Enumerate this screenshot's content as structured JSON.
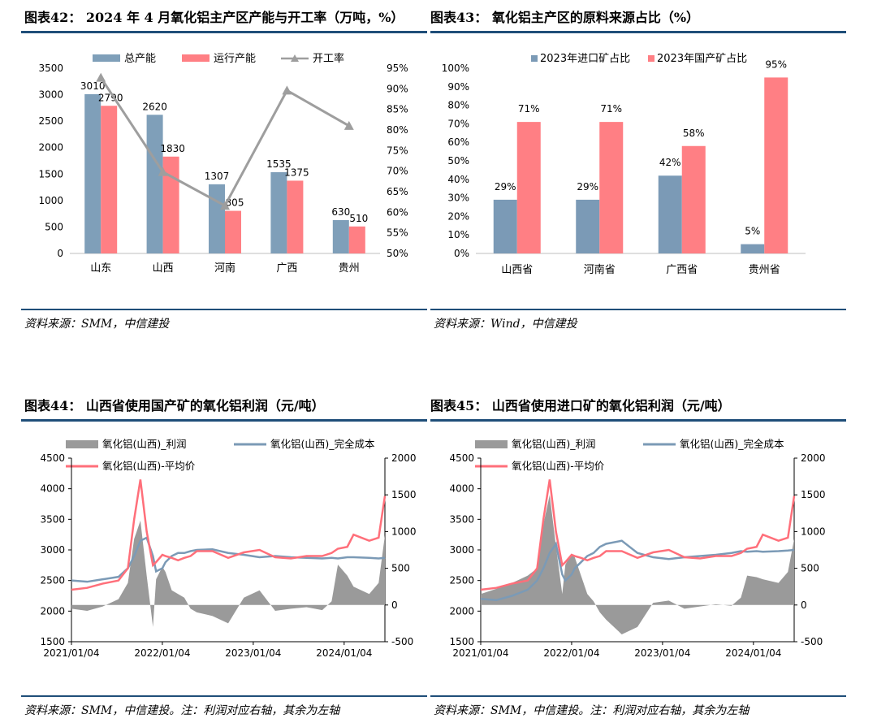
{
  "colors": {
    "blue": "#7f9fb9",
    "red": "#ff7f84",
    "gray": "#9e9e9e",
    "grayFill": "#9a9a9a",
    "steel": "#7b9ab6",
    "pink": "#ff6f7a",
    "rule": "#1f4e79"
  },
  "fig42": {
    "title": "图表42： 2024 年 4 月氧化铝主产区产能与开工率（万吨，%）",
    "source": "资料来源：SMM，中信建投"
  },
  "fig43": {
    "title": "图表43： 氧化铝主产区的原料来源占比（%）",
    "source": "资料来源：Wind，中信建投"
  },
  "fig44": {
    "title": "图表44： 山西省使用国产矿的氧化铝利润（元/吨）",
    "source": "资料来源：SMM，中信建投。注：利润对应右轴，其余为左轴"
  },
  "fig45": {
    "title": "图表45： 山西省使用进口矿的氧化铝利润（元/吨）",
    "source": "资料来源：SMM，中信建投。注：利润对应右轴，其余为左轴"
  },
  "chart_data": [
    {
      "id": "c42",
      "type": "bar",
      "categories": [
        "山东",
        "山西",
        "河南",
        "广西",
        "贵州"
      ],
      "series": [
        {
          "name": "总产能",
          "kind": "bar",
          "values": [
            3010,
            2620,
            1307,
            1535,
            630
          ]
        },
        {
          "name": "运行产能",
          "kind": "bar",
          "values": [
            2790,
            1830,
            805,
            1375,
            510
          ]
        },
        {
          "name": "开工率",
          "kind": "line",
          "axis": "right",
          "values": [
            92.7,
            69.8,
            61.6,
            89.6,
            81.0
          ]
        }
      ],
      "ylim": [
        0,
        3500
      ],
      "yticks": [
        0,
        500,
        1000,
        1500,
        2000,
        2500,
        3000,
        3500
      ],
      "y2lim": [
        50,
        95
      ],
      "y2ticks": [
        "50%",
        "55%",
        "60%",
        "65%",
        "70%",
        "75%",
        "80%",
        "85%",
        "90%",
        "95%"
      ],
      "labels_a": [
        "3010",
        "2620",
        "1307",
        "1535",
        "630"
      ],
      "labels_b": [
        "2790",
        "1830",
        "805",
        "1375",
        "510"
      ]
    },
    {
      "id": "c43",
      "type": "bar",
      "categories": [
        "山西省",
        "河南省",
        "广西省",
        "贵州省"
      ],
      "series": [
        {
          "name": "2023年进口矿占比",
          "values": [
            29,
            29,
            42,
            5
          ]
        },
        {
          "name": "2023年国产矿占比",
          "values": [
            71,
            71,
            58,
            95
          ]
        }
      ],
      "ylim": [
        0,
        100
      ],
      "yticks": [
        "0%",
        "10%",
        "20%",
        "30%",
        "40%",
        "50%",
        "60%",
        "70%",
        "80%",
        "90%",
        "100%"
      ],
      "labels_a": [
        "29%",
        "29%",
        "42%",
        "5%"
      ],
      "labels_b": [
        "71%",
        "71%",
        "58%",
        "95%"
      ]
    },
    {
      "id": "c44",
      "type": "line",
      "series_names": [
        "氧化铝(山西)_利润",
        "氧化铝(山西)_完全成本",
        "氧化铝(山西)-平均价"
      ],
      "xticks": [
        "2021/01/04",
        "2022/01/04",
        "2023/01/04",
        "2024/01/04"
      ],
      "ylim": [
        1500,
        4500
      ],
      "yticks": [
        "1500",
        "2000",
        "2500",
        "3000",
        "3500",
        "4000",
        "4500"
      ],
      "y2lim": [
        -500,
        2000
      ],
      "y2ticks": [
        "-500",
        "0",
        "500",
        "1000",
        "1500",
        "2000"
      ],
      "x": [
        0,
        0.05,
        0.1,
        0.15,
        0.18,
        0.2,
        0.22,
        0.24,
        0.26,
        0.27,
        0.29,
        0.3,
        0.32,
        0.34,
        0.36,
        0.38,
        0.4,
        0.45,
        0.5,
        0.55,
        0.6,
        0.65,
        0.7,
        0.75,
        0.8,
        0.83,
        0.85,
        0.88,
        0.9,
        0.95,
        0.98,
        1.0
      ],
      "profit": [
        -50,
        -80,
        -20,
        80,
        300,
        900,
        1150,
        400,
        -300,
        350,
        520,
        450,
        200,
        150,
        100,
        -50,
        -100,
        -150,
        -250,
        100,
        200,
        -80,
        -50,
        -30,
        -70,
        50,
        550,
        400,
        250,
        150,
        300,
        950
      ],
      "cost": [
        2500,
        2480,
        2520,
        2560,
        2700,
        2900,
        3150,
        3200,
        2900,
        2650,
        2700,
        2800,
        2900,
        2950,
        2950,
        2980,
        3000,
        3010,
        2950,
        2920,
        2880,
        2900,
        2880,
        2870,
        2860,
        2870,
        2860,
        2880,
        2880,
        2870,
        2860,
        2870
      ],
      "price": [
        2350,
        2380,
        2450,
        2500,
        2700,
        3500,
        4150,
        3300,
        2750,
        2800,
        2920,
        2900,
        2870,
        2830,
        2870,
        2900,
        2980,
        2980,
        2870,
        2960,
        3000,
        2880,
        2860,
        2900,
        2900,
        2950,
        3020,
        3050,
        3250,
        3150,
        3200,
        3880
      ]
    },
    {
      "id": "c45",
      "type": "line",
      "series_names": [
        "氧化铝(山西)_利润",
        "氧化铝(山西)_完全成本",
        "氧化铝(山西)-平均价"
      ],
      "xticks": [
        "2021/01/04",
        "2022/01/04",
        "2023/01/04",
        "2024/01/04"
      ],
      "ylim": [
        1500,
        4500
      ],
      "yticks": [
        "1500",
        "2000",
        "2500",
        "3000",
        "3500",
        "4000",
        "4500"
      ],
      "y2lim": [
        -500,
        2000
      ],
      "y2ticks": [
        "-500",
        "0",
        "500",
        "1000",
        "1500",
        "2000"
      ],
      "x": [
        0,
        0.05,
        0.1,
        0.15,
        0.18,
        0.2,
        0.22,
        0.24,
        0.26,
        0.27,
        0.29,
        0.3,
        0.32,
        0.34,
        0.36,
        0.38,
        0.4,
        0.45,
        0.5,
        0.55,
        0.6,
        0.65,
        0.7,
        0.75,
        0.8,
        0.83,
        0.85,
        0.88,
        0.9,
        0.95,
        0.98,
        1.0
      ],
      "profit": [
        150,
        220,
        300,
        400,
        500,
        1100,
        1500,
        800,
        150,
        550,
        700,
        650,
        400,
        150,
        50,
        -100,
        -200,
        -400,
        -300,
        30,
        60,
        -50,
        -20,
        10,
        -10,
        100,
        400,
        380,
        350,
        300,
        450,
        900
      ],
      "cost": [
        2200,
        2180,
        2250,
        2350,
        2500,
        2700,
        2950,
        3100,
        2600,
        2500,
        2600,
        2700,
        2800,
        2900,
        2950,
        3050,
        3100,
        3150,
        2950,
        2880,
        2850,
        2880,
        2900,
        2920,
        2950,
        2980,
        2970,
        2980,
        2970,
        2980,
        2990,
        3000
      ],
      "price": [
        2350,
        2380,
        2450,
        2500,
        2700,
        3500,
        4150,
        3300,
        2750,
        2800,
        2920,
        2900,
        2870,
        2830,
        2870,
        2900,
        2980,
        2980,
        2870,
        2960,
        3000,
        2880,
        2860,
        2900,
        2900,
        2950,
        3020,
        3050,
        3250,
        3150,
        3200,
        3880
      ]
    }
  ]
}
